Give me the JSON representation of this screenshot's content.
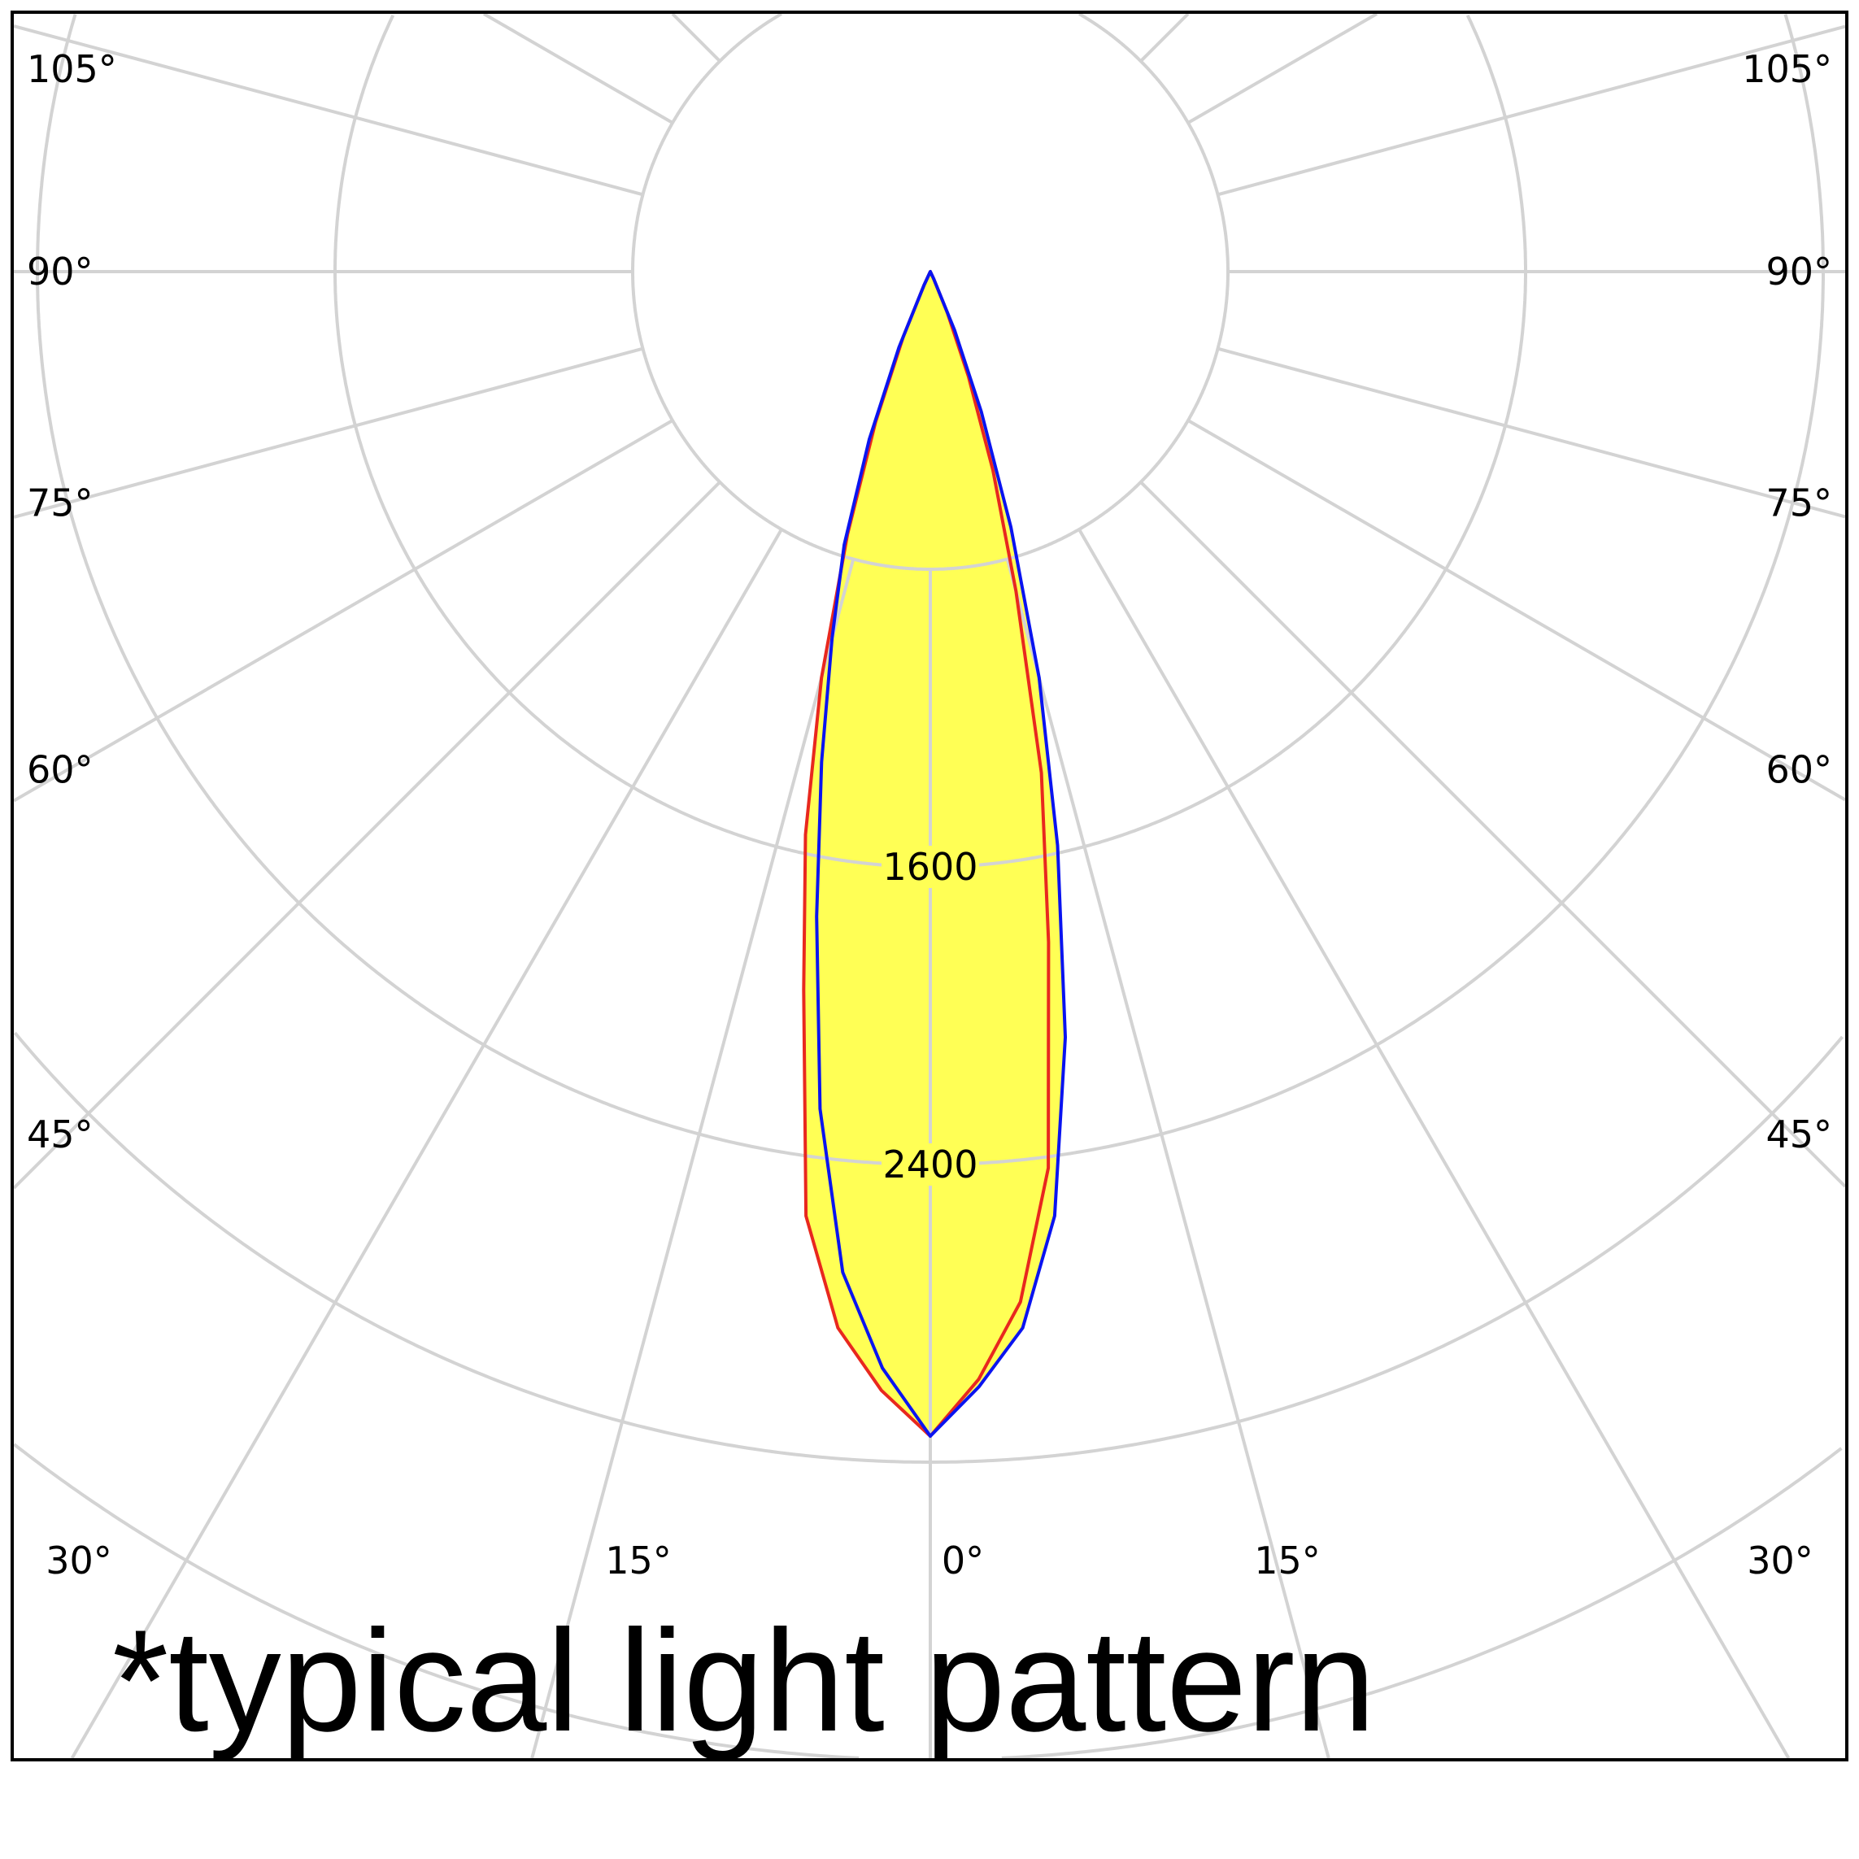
{
  "chart_data": {
    "type": "polar",
    "title": "*typical light pattern",
    "angle_unit": "degrees",
    "angle_zero": "down",
    "radial_max": 6400,
    "radial_grid_step": 800,
    "radial_labels": [
      "1600",
      "2400"
    ],
    "radial_label_values": [
      1600,
      2400
    ],
    "angle_grid_step": 15,
    "angle_labels_left": [
      "105°",
      "90°",
      "75°",
      "60°",
      "45°"
    ],
    "angle_labels_bottom": [
      "30°",
      "15°",
      "0°",
      "15°",
      "30°"
    ],
    "angle_labels_right": [
      "105°",
      "90°",
      "75°",
      "60°",
      "45°",
      "30°"
    ],
    "grid": true,
    "fill_color": "#ffff55",
    "grid_color": "#d3d3d3",
    "angles": [
      0,
      2.5,
      5,
      7.5,
      10,
      12.5,
      15,
      17.5,
      20,
      22.5,
      25,
      27.5
    ],
    "series": [
      {
        "color": "#e8281e",
        "left": [
          3130,
          3010,
          2850,
          2560,
          1960,
          1550,
          1130,
          740,
          430,
          190,
          40,
          0
        ],
        "right": [
          3130,
          2980,
          2780,
          2430,
          1830,
          1380,
          890,
          560,
          300,
          120,
          20,
          0
        ]
      },
      {
        "color": "#0a14f0",
        "left": [
          3130,
          2950,
          2700,
          2270,
          1760,
          1350,
          1020,
          770,
          480,
          220,
          40,
          0
        ],
        "right": [
          3130,
          3000,
          2850,
          2560,
          2090,
          1580,
          1130,
          720,
          400,
          170,
          20,
          0
        ]
      }
    ]
  }
}
